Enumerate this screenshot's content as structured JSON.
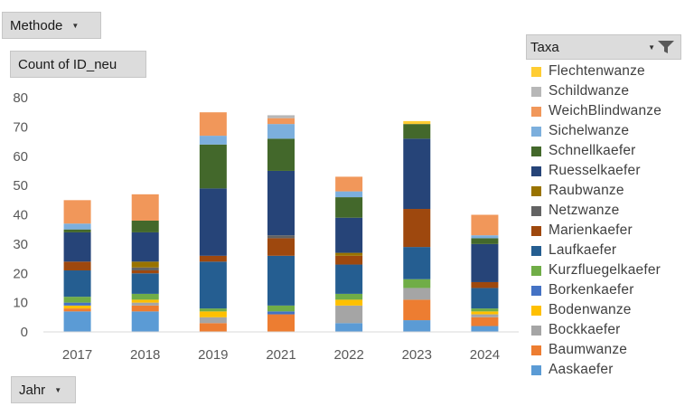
{
  "filters": {
    "methode_label": "Methode",
    "count_label": "Count of ID_neu",
    "jahr_label": "Jahr"
  },
  "legend": {
    "title": "Taxa"
  },
  "icons": {
    "dropdown": "chevron-down-icon",
    "filter": "filter-icon"
  },
  "chart_data": {
    "type": "bar",
    "stacked": true,
    "categories": [
      "2017",
      "2018",
      "2019",
      "2021",
      "2022",
      "2023",
      "2024"
    ],
    "ylim": [
      0,
      80
    ],
    "yticks": [
      0,
      10,
      20,
      30,
      40,
      50,
      60,
      70,
      80
    ],
    "grid": false,
    "legend_position": "right",
    "series": [
      {
        "name": "Aaskaefer",
        "color": "#5b9bd5",
        "values": [
          7,
          7,
          0,
          0,
          3,
          4,
          2
        ]
      },
      {
        "name": "Baumwanze",
        "color": "#ed7d31",
        "values": [
          1,
          2,
          3,
          6,
          0,
          7,
          3
        ]
      },
      {
        "name": "Bockkaefer",
        "color": "#a5a5a5",
        "values": [
          0,
          1,
          2,
          0,
          6,
          4,
          1
        ]
      },
      {
        "name": "Bodenwanze",
        "color": "#ffc000",
        "values": [
          1,
          1,
          2,
          0,
          2,
          0,
          1
        ]
      },
      {
        "name": "Borkenkaefer",
        "color": "#4472c4",
        "values": [
          1,
          0,
          0,
          1,
          0,
          0,
          0
        ]
      },
      {
        "name": "Kurzfluegelkaefer",
        "color": "#70ad47",
        "values": [
          2,
          2,
          1,
          2,
          2,
          3,
          1
        ]
      },
      {
        "name": "Laufkaefer",
        "color": "#255e91",
        "values": [
          9,
          7,
          16,
          17,
          10,
          11,
          7
        ]
      },
      {
        "name": "Marienkaefer",
        "color": "#9e480e",
        "values": [
          3,
          1,
          2,
          6,
          3,
          13,
          2
        ]
      },
      {
        "name": "Netzwanze",
        "color": "#636363",
        "values": [
          0,
          1,
          0,
          1,
          0,
          0,
          0
        ]
      },
      {
        "name": "Raubwanze",
        "color": "#997300",
        "values": [
          0,
          2,
          0,
          0,
          1,
          0,
          0
        ]
      },
      {
        "name": "Ruesselkaefer",
        "color": "#264478",
        "values": [
          10,
          10,
          23,
          22,
          12,
          24,
          13
        ]
      },
      {
        "name": "Schnellkaefer",
        "color": "#43682b",
        "values": [
          1,
          4,
          15,
          11,
          7,
          5,
          2
        ]
      },
      {
        "name": "Sichelwanze",
        "color": "#7cafdd",
        "values": [
          2,
          0,
          3,
          5,
          2,
          0,
          1
        ]
      },
      {
        "name": "WeichBlindwanze",
        "color": "#f1975a",
        "values": [
          8,
          9,
          8,
          2,
          5,
          0,
          7
        ]
      },
      {
        "name": "Schildwanze",
        "color": "#b7b7b7",
        "values": [
          0,
          0,
          0,
          1,
          0,
          0,
          0
        ]
      },
      {
        "name": "Flechtenwanze",
        "color": "#ffcd33",
        "values": [
          0,
          0,
          0,
          0,
          0,
          1,
          0
        ]
      }
    ]
  }
}
